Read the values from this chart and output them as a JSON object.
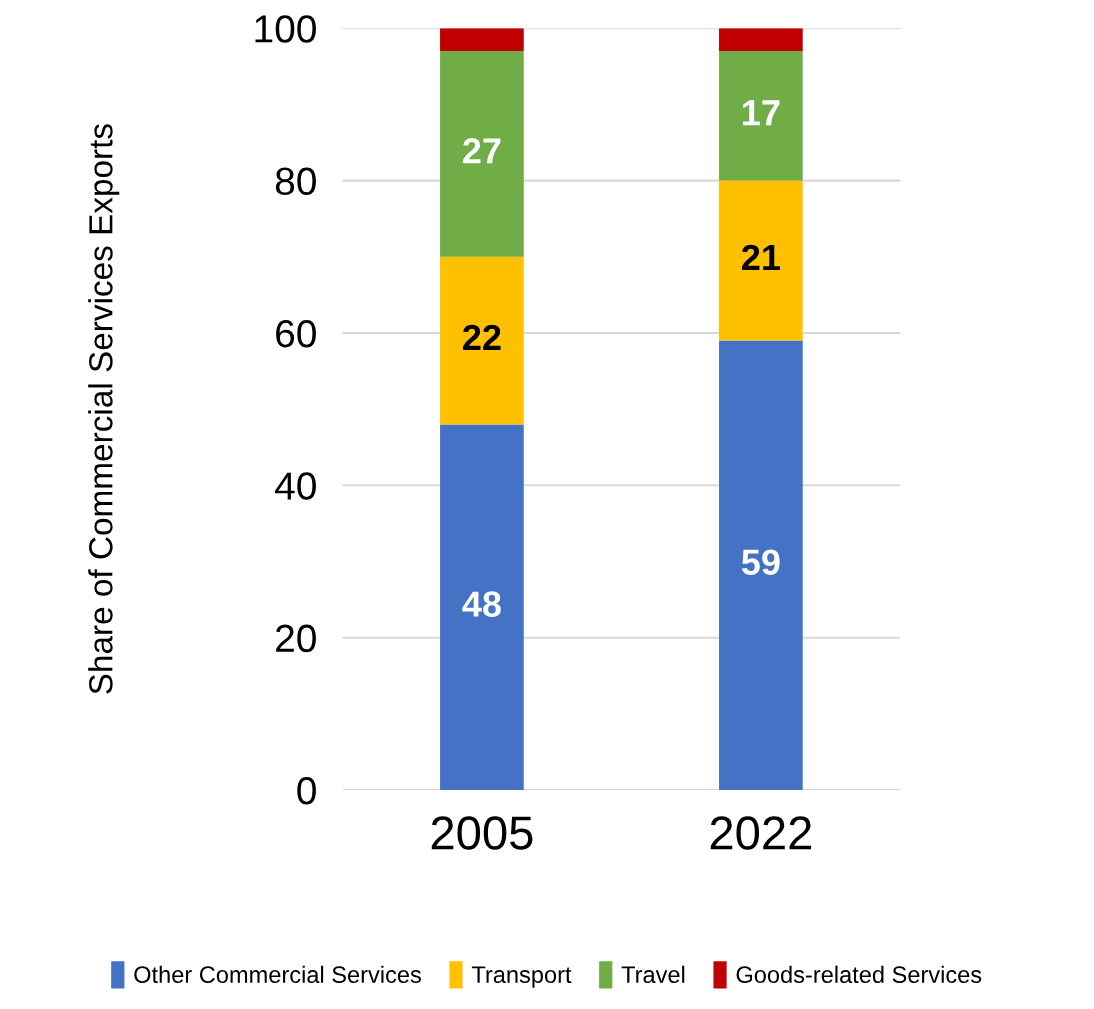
{
  "chart_data": {
    "type": "bar",
    "stacked": true,
    "ylabel": "Share of Commercial Services Exports",
    "categories": [
      "2005",
      "2022"
    ],
    "series": [
      {
        "name": "Other Commercial Services",
        "color": "#4472c4",
        "values": [
          48,
          59
        ],
        "value_labels": [
          "48",
          "59"
        ]
      },
      {
        "name": "Transport",
        "color": "#ffc000",
        "values": [
          22,
          21
        ],
        "value_labels": [
          "22",
          "21"
        ]
      },
      {
        "name": "Travel",
        "color": "#70ad47",
        "values": [
          27,
          17
        ],
        "value_labels": [
          "27",
          "17"
        ]
      },
      {
        "name": "Goods-related Services",
        "color": "#c00000",
        "values": [
          3,
          3
        ],
        "value_labels": [
          null,
          null
        ]
      }
    ],
    "ylim": [
      0,
      100
    ],
    "yticks": [
      0,
      20,
      40,
      60,
      80,
      100
    ],
    "grid": "y",
    "legend": "bottom"
  }
}
